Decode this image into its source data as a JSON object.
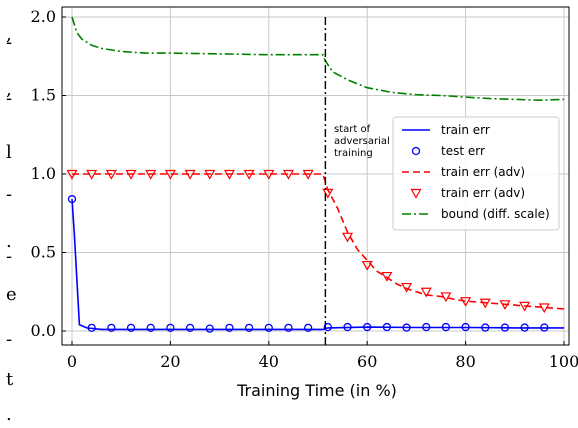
{
  "margin_glyphs": [
    ",",
    "-",
    ",",
    "-",
    "l",
    "-",
    ".",
    "-",
    "e",
    "-",
    "t",
    "."
  ],
  "chart_data": {
    "type": "line",
    "xlabel": "Training Time (in %)",
    "ylabel": "",
    "xlim": [
      0,
      100
    ],
    "ylim": [
      0,
      2.1
    ],
    "xticks": [
      0,
      20,
      40,
      60,
      80,
      100
    ],
    "yticks": [
      0.0,
      0.5,
      1.0,
      1.5,
      2.0
    ],
    "xtick_labels": [
      "0",
      "20",
      "40",
      "60",
      "80",
      "100"
    ],
    "ytick_labels": [
      "0.0",
      "0.5",
      "1.0",
      "1.5",
      "2.0"
    ],
    "grid": true,
    "legend_position": "center-right",
    "annotation": {
      "x": 51.5,
      "lines": [
        "start of",
        "adversarial",
        "training"
      ]
    },
    "series": [
      {
        "name": "train err",
        "style": "solid",
        "color": "#0000ff",
        "x": [
          0,
          0.5,
          1.5,
          3,
          6,
          10,
          20,
          30,
          40,
          51,
          52,
          60,
          70,
          80,
          90,
          100
        ],
        "y": [
          0.84,
          0.6,
          0.04,
          0.02,
          0.01,
          0.01,
          0.01,
          0.01,
          0.01,
          0.01,
          0.02,
          0.025,
          0.022,
          0.022,
          0.02,
          0.02
        ]
      },
      {
        "name": "test err",
        "style": "marker-circle",
        "color": "#0000ff",
        "x": [
          0,
          4,
          8,
          12,
          16,
          20,
          24,
          28,
          32,
          36,
          40,
          44,
          48,
          52,
          56,
          60,
          64,
          68,
          72,
          76,
          80,
          84,
          88,
          92,
          96
        ],
        "y": [
          0.84,
          0.02,
          0.02,
          0.02,
          0.02,
          0.02,
          0.02,
          0.015,
          0.02,
          0.02,
          0.02,
          0.02,
          0.02,
          0.025,
          0.025,
          0.025,
          0.025,
          0.022,
          0.025,
          0.025,
          0.025,
          0.022,
          0.022,
          0.022,
          0.022
        ]
      },
      {
        "name": "train err (adv)",
        "style": "dashed",
        "color": "#ff0000",
        "x": [
          0,
          10,
          20,
          30,
          40,
          51,
          52,
          54,
          56,
          58,
          60,
          62,
          64,
          66,
          68,
          70,
          72,
          75,
          78,
          80,
          84,
          88,
          92,
          96,
          100
        ],
        "y": [
          1.0,
          1.0,
          1.0,
          1.0,
          1.0,
          1.0,
          0.9,
          0.78,
          0.63,
          0.52,
          0.45,
          0.38,
          0.34,
          0.3,
          0.27,
          0.25,
          0.23,
          0.22,
          0.2,
          0.19,
          0.18,
          0.17,
          0.16,
          0.15,
          0.14
        ]
      },
      {
        "name": "train err (adv)",
        "style": "marker-triangle",
        "color": "#ff0000",
        "x": [
          0,
          4,
          8,
          12,
          16,
          20,
          24,
          28,
          32,
          36,
          40,
          44,
          48,
          52,
          56,
          60,
          64,
          68,
          72,
          76,
          80,
          84,
          88,
          92,
          96
        ],
        "y": [
          1.0,
          1.0,
          1.0,
          1.0,
          1.0,
          1.0,
          1.0,
          1.0,
          1.0,
          1.0,
          1.0,
          1.0,
          1.0,
          0.88,
          0.6,
          0.42,
          0.35,
          0.28,
          0.25,
          0.22,
          0.19,
          0.18,
          0.17,
          0.16,
          0.15
        ]
      },
      {
        "name": "bound (diff. scale)",
        "style": "dashdot",
        "color": "#008000",
        "x": [
          0,
          1,
          2,
          4,
          6,
          10,
          15,
          20,
          30,
          40,
          51,
          51.5,
          53,
          56,
          60,
          65,
          70,
          75,
          80,
          85,
          90,
          95,
          100
        ],
        "y": [
          2.0,
          1.9,
          1.86,
          1.82,
          1.8,
          1.78,
          1.77,
          1.77,
          1.765,
          1.76,
          1.76,
          1.72,
          1.65,
          1.6,
          1.55,
          1.52,
          1.505,
          1.5,
          1.49,
          1.48,
          1.475,
          1.47,
          1.475
        ]
      }
    ]
  }
}
